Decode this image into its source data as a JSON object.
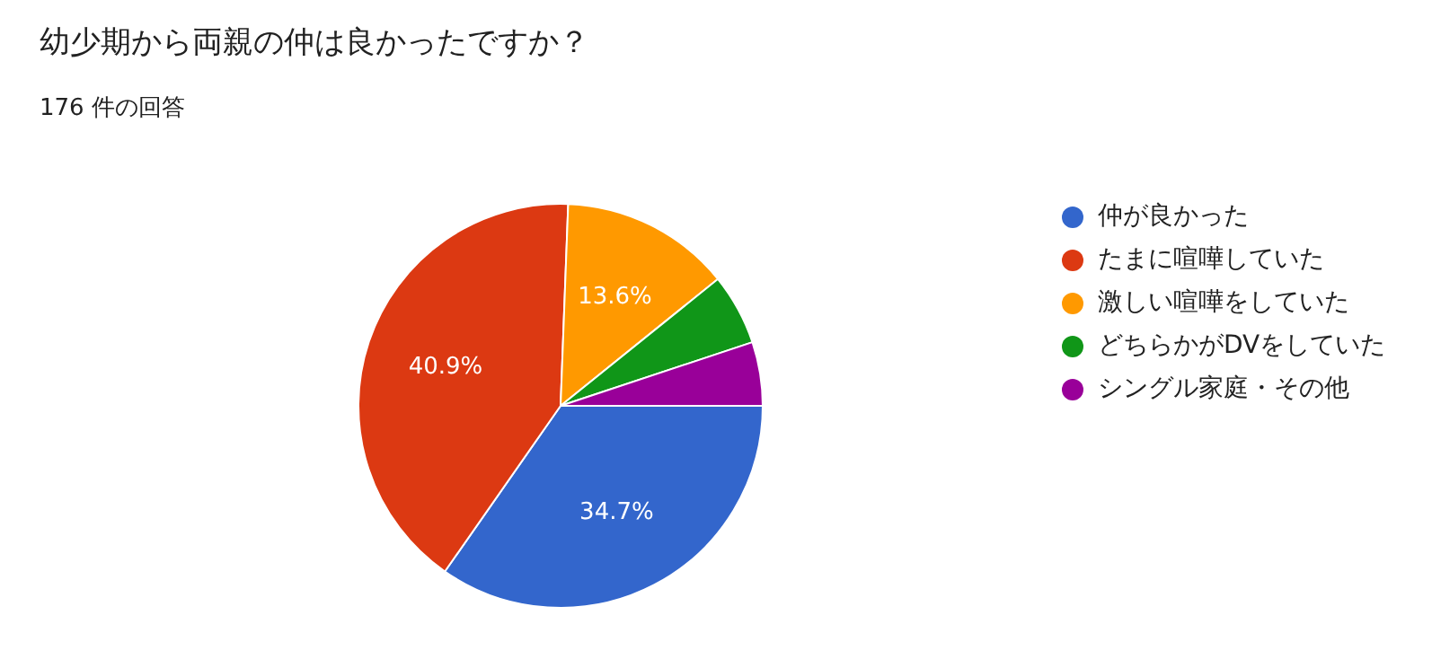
{
  "chart_data": {
    "type": "pie",
    "title": "幼少期から両親の仲は良かったですか？",
    "subtitle": "176 件の回答",
    "categories": [
      "仲が良かった",
      "たまに喧嘩していた",
      "激しい喧嘩をしていた",
      "どちらかがDVをしていた",
      "シングル家庭・その他"
    ],
    "values": [
      34.7,
      40.9,
      13.6,
      5.7,
      5.1
    ],
    "colors": [
      "#3366cc",
      "#dc3912",
      "#ff9900",
      "#109618",
      "#990099"
    ],
    "value_labels": [
      "34.7%",
      "40.9%",
      "13.6%",
      null,
      null
    ],
    "legend": "right"
  }
}
